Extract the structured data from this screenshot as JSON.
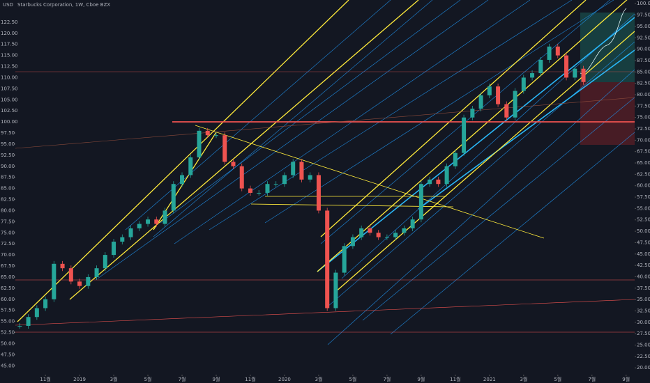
{
  "chart_data": {
    "type": "candlestick",
    "title": "Starbucks Corporation, 1W, Cboe BZX",
    "currency": "USD",
    "xlim": [
      -1.76,
      34.5
    ],
    "xticks": [
      {
        "value": 0,
        "label": "11월"
      },
      {
        "value": 2,
        "label": "2019"
      },
      {
        "value": 4,
        "label": "3월"
      },
      {
        "value": 6,
        "label": "5월"
      },
      {
        "value": 8,
        "label": "7월"
      },
      {
        "value": 10,
        "label": "9월"
      },
      {
        "value": 12,
        "label": "11월"
      },
      {
        "value": 14,
        "label": "2020"
      },
      {
        "value": 16,
        "label": "3월"
      },
      {
        "value": 18,
        "label": "5월"
      },
      {
        "value": 20,
        "label": "7월"
      },
      {
        "value": 22,
        "label": "9월"
      },
      {
        "value": 24,
        "label": "11월"
      },
      {
        "value": 26,
        "label": "2021"
      },
      {
        "value": 28,
        "label": "3월"
      },
      {
        "value": 30,
        "label": "5월"
      },
      {
        "value": 32,
        "label": "7월"
      },
      {
        "value": 34,
        "label": "9월"
      }
    ],
    "ylim": [
      43,
      127.5
    ],
    "yticks": [
      {
        "value": 45,
        "label": "45.00"
      },
      {
        "value": 47.5,
        "label": "47.50"
      },
      {
        "value": 50,
        "label": "50.00"
      },
      {
        "value": 52.5,
        "label": "52.50"
      },
      {
        "value": 55,
        "label": "55.00"
      },
      {
        "value": 57.5,
        "label": "57.50"
      },
      {
        "value": 60,
        "label": "60.00"
      },
      {
        "value": 62.5,
        "label": "62.50"
      },
      {
        "value": 65,
        "label": "65.00"
      },
      {
        "value": 67.5,
        "label": "67.50"
      },
      {
        "value": 70,
        "label": "70.00"
      },
      {
        "value": 72.5,
        "label": "72.50"
      },
      {
        "value": 75,
        "label": "75.00"
      },
      {
        "value": 77.5,
        "label": "77.50"
      },
      {
        "value": 80,
        "label": "80.00"
      },
      {
        "value": 82.5,
        "label": "82.50"
      },
      {
        "value": 85,
        "label": "85.00"
      },
      {
        "value": 87.5,
        "label": "87.50"
      },
      {
        "value": 90,
        "label": "90.00"
      },
      {
        "value": 92.5,
        "label": "92.50"
      },
      {
        "value": 95,
        "label": "95.00"
      },
      {
        "value": 97.5,
        "label": "97.50"
      },
      {
        "value": 100,
        "label": "100.00"
      },
      {
        "value": 102.5,
        "label": "102.50"
      },
      {
        "value": 105,
        "label": "105.00"
      },
      {
        "value": 107.5,
        "label": "107.50"
      },
      {
        "value": 110,
        "label": "110.00"
      },
      {
        "value": 112.5,
        "label": "112.50"
      },
      {
        "value": 115,
        "label": "115.00"
      },
      {
        "value": 117.5,
        "label": "117.50"
      },
      {
        "value": 120,
        "label": "120.00"
      },
      {
        "value": 122.5,
        "label": "122.50"
      }
    ],
    "y2lim": [
      18.5,
      100.8
    ],
    "y2ticks": [
      {
        "value": 20,
        "label": "20.00"
      },
      {
        "value": 22.5,
        "label": "22.50"
      },
      {
        "value": 25,
        "label": "25.00"
      },
      {
        "value": 27.5,
        "label": "27.50"
      },
      {
        "value": 30,
        "label": "30.00"
      },
      {
        "value": 32.5,
        "label": "32.50"
      },
      {
        "value": 35,
        "label": "35.00"
      },
      {
        "value": 37.5,
        "label": "37.50"
      },
      {
        "value": 40,
        "label": "40.00"
      },
      {
        "value": 42.5,
        "label": "42.50"
      },
      {
        "value": 45,
        "label": "45.00"
      },
      {
        "value": 47.5,
        "label": "47.50"
      },
      {
        "value": 50,
        "label": "50.00"
      },
      {
        "value": 52.5,
        "label": "52.50"
      },
      {
        "value": 55,
        "label": "55.00"
      },
      {
        "value": 57.5,
        "label": "57.50"
      },
      {
        "value": 60,
        "label": "60.00"
      },
      {
        "value": 62.5,
        "label": "62.50"
      },
      {
        "value": 65,
        "label": "65.00"
      },
      {
        "value": 67.5,
        "label": "67.50"
      },
      {
        "value": 70,
        "label": "70.00"
      },
      {
        "value": 72.5,
        "label": "72.50"
      },
      {
        "value": 75,
        "label": "75.00"
      },
      {
        "value": 77.5,
        "label": "77.50"
      },
      {
        "value": 80,
        "label": "80.00"
      },
      {
        "value": 82.5,
        "label": "82.50"
      },
      {
        "value": 85,
        "label": "85.00"
      },
      {
        "value": 87.5,
        "label": "87.50"
      },
      {
        "value": 90,
        "label": "90.00"
      },
      {
        "value": 92.5,
        "label": "92.50"
      },
      {
        "value": 95,
        "label": "95.00"
      },
      {
        "value": 97.5,
        "label": "97.50"
      },
      {
        "value": 100,
        "label": "100.00"
      }
    ],
    "up_color": "#26a69a",
    "down_color": "#ef5350",
    "x": [
      -1.5,
      -1,
      -0.5,
      0,
      0.5,
      1,
      1.5,
      2,
      2.5,
      3,
      3.5,
      4,
      4.5,
      5,
      5.5,
      6,
      6.5,
      7,
      7.5,
      8,
      8.5,
      9,
      9.5,
      10,
      10.5,
      11,
      11.5,
      12,
      12.5,
      13,
      13.5,
      14,
      14.5,
      15,
      15.5,
      16,
      16.5,
      17,
      17.5,
      18,
      18.5,
      19,
      19.5,
      20,
      20.5,
      21,
      21.5,
      22,
      22.5,
      23,
      23.5,
      24,
      24.5,
      25,
      25.5,
      26,
      26.5,
      27,
      27.5,
      28,
      28.5,
      29,
      29.5,
      30,
      30.5,
      31,
      31.5
    ],
    "series": [
      {
        "name": "SBUX",
        "values": [
          54,
          56,
          58,
          60,
          68,
          67,
          64,
          63,
          65,
          67,
          70,
          73,
          74,
          76,
          77,
          78,
          77,
          80,
          86,
          88,
          92,
          98,
          97,
          97,
          91,
          90,
          85,
          84,
          84,
          86,
          86,
          88,
          91,
          87,
          88,
          80,
          58,
          66,
          72,
          74,
          76,
          75,
          74,
          74,
          75,
          76,
          78,
          86,
          87,
          86,
          90,
          93,
          101,
          103,
          106,
          108,
          104,
          101,
          107,
          110,
          111,
          114,
          117,
          115,
          110,
          112,
          109
        ]
      }
    ]
  }
}
